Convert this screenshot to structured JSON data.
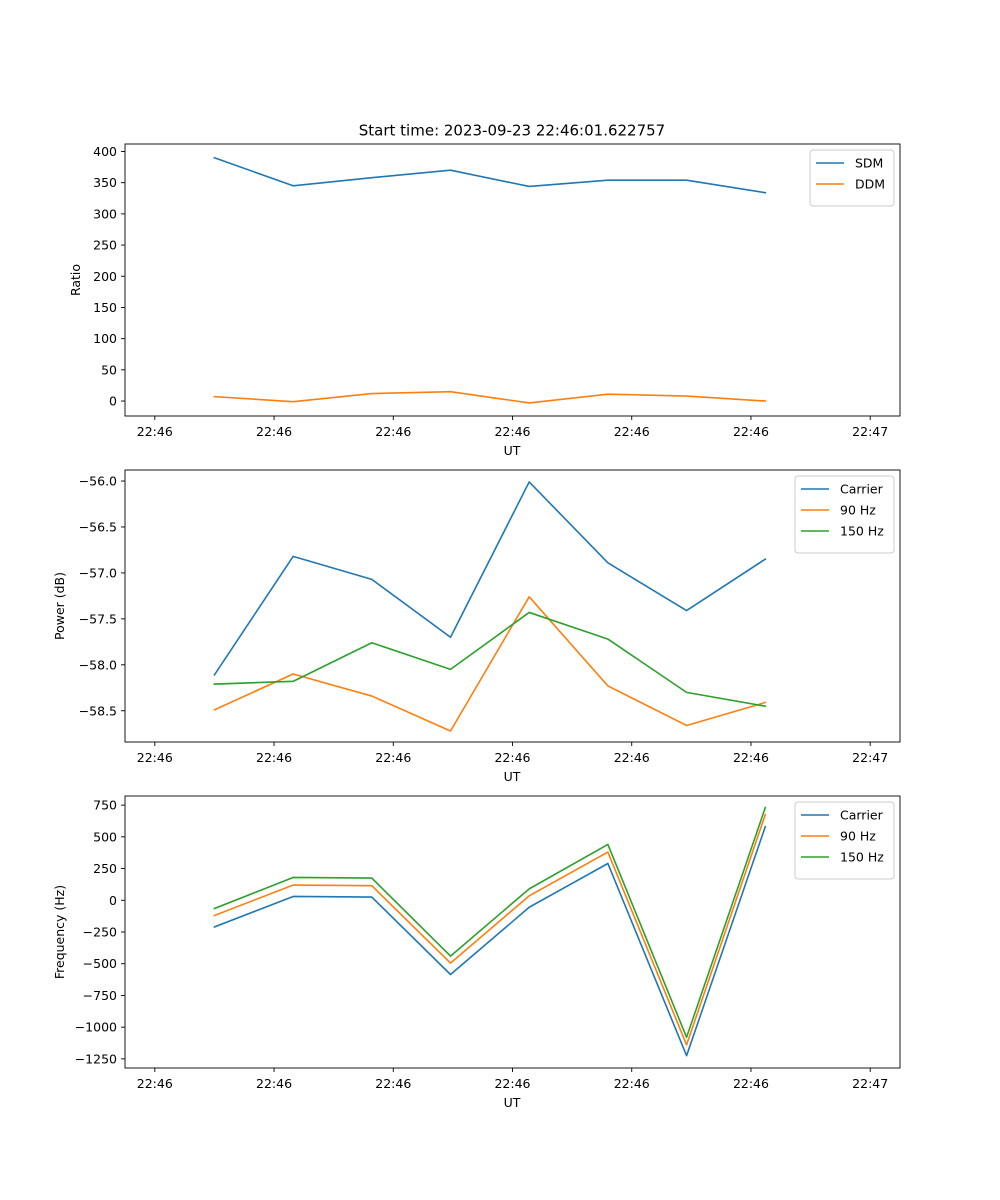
{
  "figure": {
    "title": "Start time: 2023-09-23 22:46:01.622757"
  },
  "chart_data": [
    {
      "type": "line",
      "title": "Start time: 2023-09-23 22:46:01.622757",
      "xlabel": "UT",
      "ylabel": "Ratio",
      "x_tick_labels": [
        "22:46",
        "22:46",
        "22:46",
        "22:46",
        "22:46",
        "22:46",
        "22:47"
      ],
      "y_ticks": [
        0,
        50,
        100,
        150,
        200,
        250,
        300,
        350,
        400
      ],
      "y_tick_labels": [
        "0",
        "50",
        "100",
        "150",
        "200",
        "250",
        "300",
        "350",
        "400"
      ],
      "ylim": [
        -24,
        412
      ],
      "xlim": [
        -0.25,
        6.25
      ],
      "x": [
        0.5,
        1.16,
        1.82,
        2.48,
        3.14,
        3.8,
        4.46,
        5.12
      ],
      "series": [
        {
          "name": "SDM",
          "color": "#1f77b4",
          "values": [
            390,
            345,
            358,
            370,
            344,
            354,
            354,
            334
          ]
        },
        {
          "name": "DDM",
          "color": "#ff7f0e",
          "values": [
            7,
            -1,
            12,
            15,
            -3,
            11,
            8,
            0
          ]
        }
      ],
      "legend": "top-right",
      "grid": false
    },
    {
      "type": "line",
      "title": "",
      "xlabel": "UT",
      "ylabel": "Power (dB)",
      "x_tick_labels": [
        "22:46",
        "22:46",
        "22:46",
        "22:46",
        "22:46",
        "22:46",
        "22:47"
      ],
      "y_ticks": [
        -58.5,
        -58.0,
        -57.5,
        -57.0,
        -56.5,
        -56.0
      ],
      "y_tick_labels": [
        "−58.5",
        "−58.0",
        "−57.5",
        "−57.0",
        "−56.5",
        "−56.0"
      ],
      "ylim": [
        -58.84,
        -55.88
      ],
      "xlim": [
        -0.25,
        6.25
      ],
      "x": [
        0.5,
        1.16,
        1.82,
        2.48,
        3.14,
        3.8,
        4.46,
        5.12
      ],
      "series": [
        {
          "name": "Carrier",
          "color": "#1f77b4",
          "values": [
            -58.11,
            -56.82,
            -57.07,
            -57.7,
            -56.01,
            -56.89,
            -57.41,
            -56.85
          ]
        },
        {
          "name": "90 Hz",
          "color": "#ff7f0e",
          "values": [
            -58.49,
            -58.1,
            -58.34,
            -58.72,
            -57.26,
            -58.23,
            -58.66,
            -58.41
          ]
        },
        {
          "name": "150 Hz",
          "color": "#2ca02c",
          "values": [
            -58.21,
            -58.18,
            -57.76,
            -58.05,
            -57.43,
            -57.72,
            -58.3,
            -58.45
          ]
        }
      ],
      "legend": "top-right",
      "grid": false
    },
    {
      "type": "line",
      "title": "",
      "xlabel": "UT",
      "ylabel": "Frequency (Hz)",
      "x_tick_labels": [
        "22:46",
        "22:46",
        "22:46",
        "22:46",
        "22:46",
        "22:46",
        "22:47"
      ],
      "y_ticks": [
        -1250,
        -1000,
        -750,
        -500,
        -250,
        0,
        250,
        500,
        750
      ],
      "y_tick_labels": [
        "−1250",
        "−1000",
        "−750",
        "−500",
        "−250",
        "0",
        "250",
        "500",
        "750"
      ],
      "ylim": [
        -1322,
        822
      ],
      "xlim": [
        -0.25,
        6.25
      ],
      "x": [
        0.5,
        1.16,
        1.82,
        2.48,
        3.14,
        3.8,
        4.46,
        5.12
      ],
      "series": [
        {
          "name": "Carrier",
          "color": "#1f77b4",
          "values": [
            -210,
            30,
            25,
            -585,
            -55,
            290,
            -1225,
            580
          ]
        },
        {
          "name": "90 Hz",
          "color": "#ff7f0e",
          "values": [
            -120,
            120,
            115,
            -495,
            35,
            380,
            -1140,
            675
          ]
        },
        {
          "name": "150 Hz",
          "color": "#2ca02c",
          "values": [
            -65,
            180,
            175,
            -440,
            90,
            440,
            -1080,
            730
          ]
        }
      ],
      "legend": "top-right",
      "grid": false
    }
  ]
}
